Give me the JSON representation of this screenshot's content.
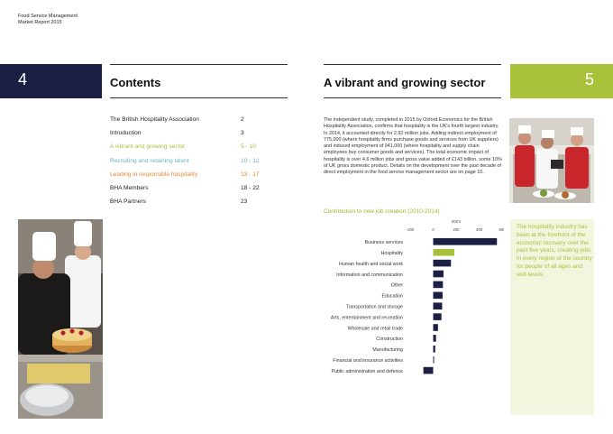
{
  "header": {
    "line1": "Food Service Management",
    "line2": "Market Report 2015"
  },
  "left_page": {
    "number": "4",
    "title": "Contents",
    "toc": [
      {
        "label": "The British Hospitality Association",
        "page": "2",
        "color": "#222222"
      },
      {
        "label": "Introduction",
        "page": "3",
        "color": "#222222"
      },
      {
        "label": "A vibrant and growing sector",
        "page": "5 - 10",
        "color": "#a8c13a"
      },
      {
        "label": "Recruiting and retaining talent",
        "page": "10 - 12",
        "color": "#6fb1c8"
      },
      {
        "label": "Leading in responsible hospitality",
        "page": "13 - 17",
        "color": "#e8872a"
      },
      {
        "label": "BHA Members",
        "page": "18 - 22",
        "color": "#222222"
      },
      {
        "label": "BHA Partners",
        "page": "23",
        "color": "#222222"
      }
    ]
  },
  "right_page": {
    "number": "5",
    "title": "A vibrant and growing sector",
    "intro": "The independent study, completed in 2015 by Oxford Economics for the British Hospitality Association, confirms that hospitality is the UK's fourth largest industry. In 2014, it accounted directly for 2.92 million jobs. Adding indirect employment of 775,000 (where hospitality firms purchase goods and services from UK suppliers) and induced employment of 941,000 (where hospitality and supply chain employees buy consumer goods and services). The total economic impact of hospitality is over 4.6 million jobs and gross value added of £143 billion, some 10% of UK gross domestic product. Details on the development over the past decade of direct employment in the food service management sector are on page 10.",
    "quote": "The hospitality industry has been at the forefront of the economic recovery over the past five years, creating jobs in every region of the country for people of all ages and skill levels."
  },
  "chart_data": {
    "type": "bar",
    "orientation": "horizontal",
    "title": "Contribution to new job creation (2010-2014)",
    "xlabel": "000's",
    "xlim": [
      -200,
      600
    ],
    "xticks": [
      -200,
      0,
      200,
      400,
      600
    ],
    "categories": [
      "Business services",
      "Hospitality",
      "Human health and social work",
      "Information and communication",
      "Other",
      "Education",
      "Transportation and storage",
      "Arts, entertainment and recreation",
      "Wholesale and retail trade",
      "Construction",
      "Manufacturing",
      "Financial and insurance activities",
      "Public administration and defence"
    ],
    "values": [
      555,
      185,
      155,
      90,
      85,
      82,
      78,
      72,
      42,
      25,
      18,
      8,
      -85
    ],
    "colors": {
      "default": "#1b1f44",
      "highlight": "#a8c13a"
    },
    "highlight_index": 1
  }
}
